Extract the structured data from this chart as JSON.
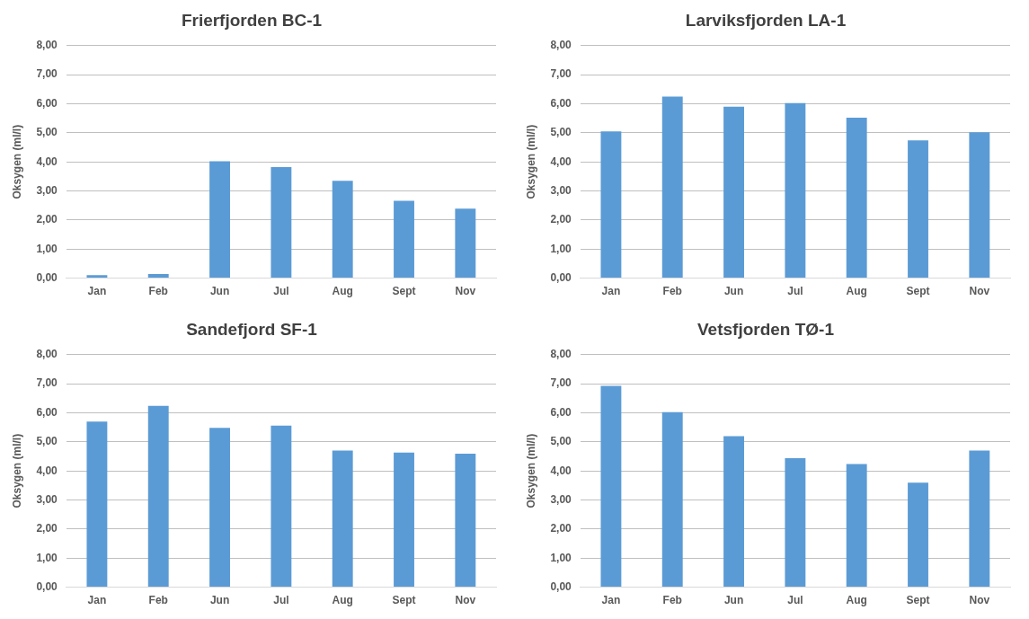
{
  "chart_data": [
    {
      "type": "bar",
      "title": "Frierfjorden BC-1",
      "ylabel": "Oksygen (ml/l)",
      "categories": [
        "Jan",
        "Feb",
        "Jun",
        "Jul",
        "Aug",
        "Sept",
        "Nov"
      ],
      "values": [
        0.1,
        0.14,
        4.02,
        3.82,
        3.35,
        2.66,
        2.39
      ],
      "color": "#5b9bd5",
      "ylim": [
        0,
        8
      ],
      "yticks": [
        {
          "value": 0,
          "label": "0,00"
        },
        {
          "value": 1,
          "label": "1,00"
        },
        {
          "value": 2,
          "label": "2,00"
        },
        {
          "value": 3,
          "label": "3,00"
        },
        {
          "value": 4,
          "label": "4,00"
        },
        {
          "value": 5,
          "label": "5,00"
        },
        {
          "value": 6,
          "label": "6,00"
        },
        {
          "value": 7,
          "label": "7,00"
        },
        {
          "value": 8,
          "label": "8,00"
        }
      ],
      "grid": "y",
      "legend": false
    },
    {
      "type": "bar",
      "title": "Larviksfjorden LA-1",
      "ylabel": "Oksygen (ml/l)",
      "categories": [
        "Jan",
        "Feb",
        "Jun",
        "Jul",
        "Aug",
        "Sept",
        "Nov"
      ],
      "values": [
        5.05,
        6.25,
        5.9,
        6.02,
        5.52,
        4.74,
        5.02
      ],
      "color": "#5b9bd5",
      "ylim": [
        0,
        8
      ],
      "yticks": [
        {
          "value": 0,
          "label": "0,00"
        },
        {
          "value": 1,
          "label": "1,00"
        },
        {
          "value": 2,
          "label": "2,00"
        },
        {
          "value": 3,
          "label": "3,00"
        },
        {
          "value": 4,
          "label": "4,00"
        },
        {
          "value": 5,
          "label": "5,00"
        },
        {
          "value": 6,
          "label": "6,00"
        },
        {
          "value": 7,
          "label": "7,00"
        },
        {
          "value": 8,
          "label": "8,00"
        }
      ],
      "grid": "y",
      "legend": false
    },
    {
      "type": "bar",
      "title": "Sandefjord SF-1",
      "ylabel": "Oksygen (ml/l)",
      "categories": [
        "Jan",
        "Feb",
        "Jun",
        "Jul",
        "Aug",
        "Sept",
        "Nov"
      ],
      "values": [
        5.7,
        6.24,
        5.48,
        5.56,
        4.7,
        4.63,
        4.59
      ],
      "color": "#5b9bd5",
      "ylim": [
        0,
        8
      ],
      "yticks": [
        {
          "value": 0,
          "label": "0,00"
        },
        {
          "value": 1,
          "label": "1,00"
        },
        {
          "value": 2,
          "label": "2,00"
        },
        {
          "value": 3,
          "label": "3,00"
        },
        {
          "value": 4,
          "label": "4,00"
        },
        {
          "value": 5,
          "label": "5,00"
        },
        {
          "value": 6,
          "label": "6,00"
        },
        {
          "value": 7,
          "label": "7,00"
        },
        {
          "value": 8,
          "label": "8,00"
        }
      ],
      "grid": "y",
      "legend": false
    },
    {
      "type": "bar",
      "title": "Vetsfjorden TØ-1",
      "ylabel": "Oksygen (ml/l)",
      "categories": [
        "Jan",
        "Feb",
        "Jun",
        "Jul",
        "Aug",
        "Sept",
        "Nov"
      ],
      "values": [
        6.93,
        6.02,
        5.2,
        4.44,
        4.24,
        3.6,
        4.7
      ],
      "color": "#5b9bd5",
      "ylim": [
        0,
        8
      ],
      "yticks": [
        {
          "value": 0,
          "label": "0,00"
        },
        {
          "value": 1,
          "label": "1,00"
        },
        {
          "value": 2,
          "label": "2,00"
        },
        {
          "value": 3,
          "label": "3,00"
        },
        {
          "value": 4,
          "label": "4,00"
        },
        {
          "value": 5,
          "label": "5,00"
        },
        {
          "value": 6,
          "label": "6,00"
        },
        {
          "value": 7,
          "label": "7,00"
        },
        {
          "value": 8,
          "label": "8,00"
        }
      ],
      "grid": "y",
      "legend": false
    }
  ]
}
